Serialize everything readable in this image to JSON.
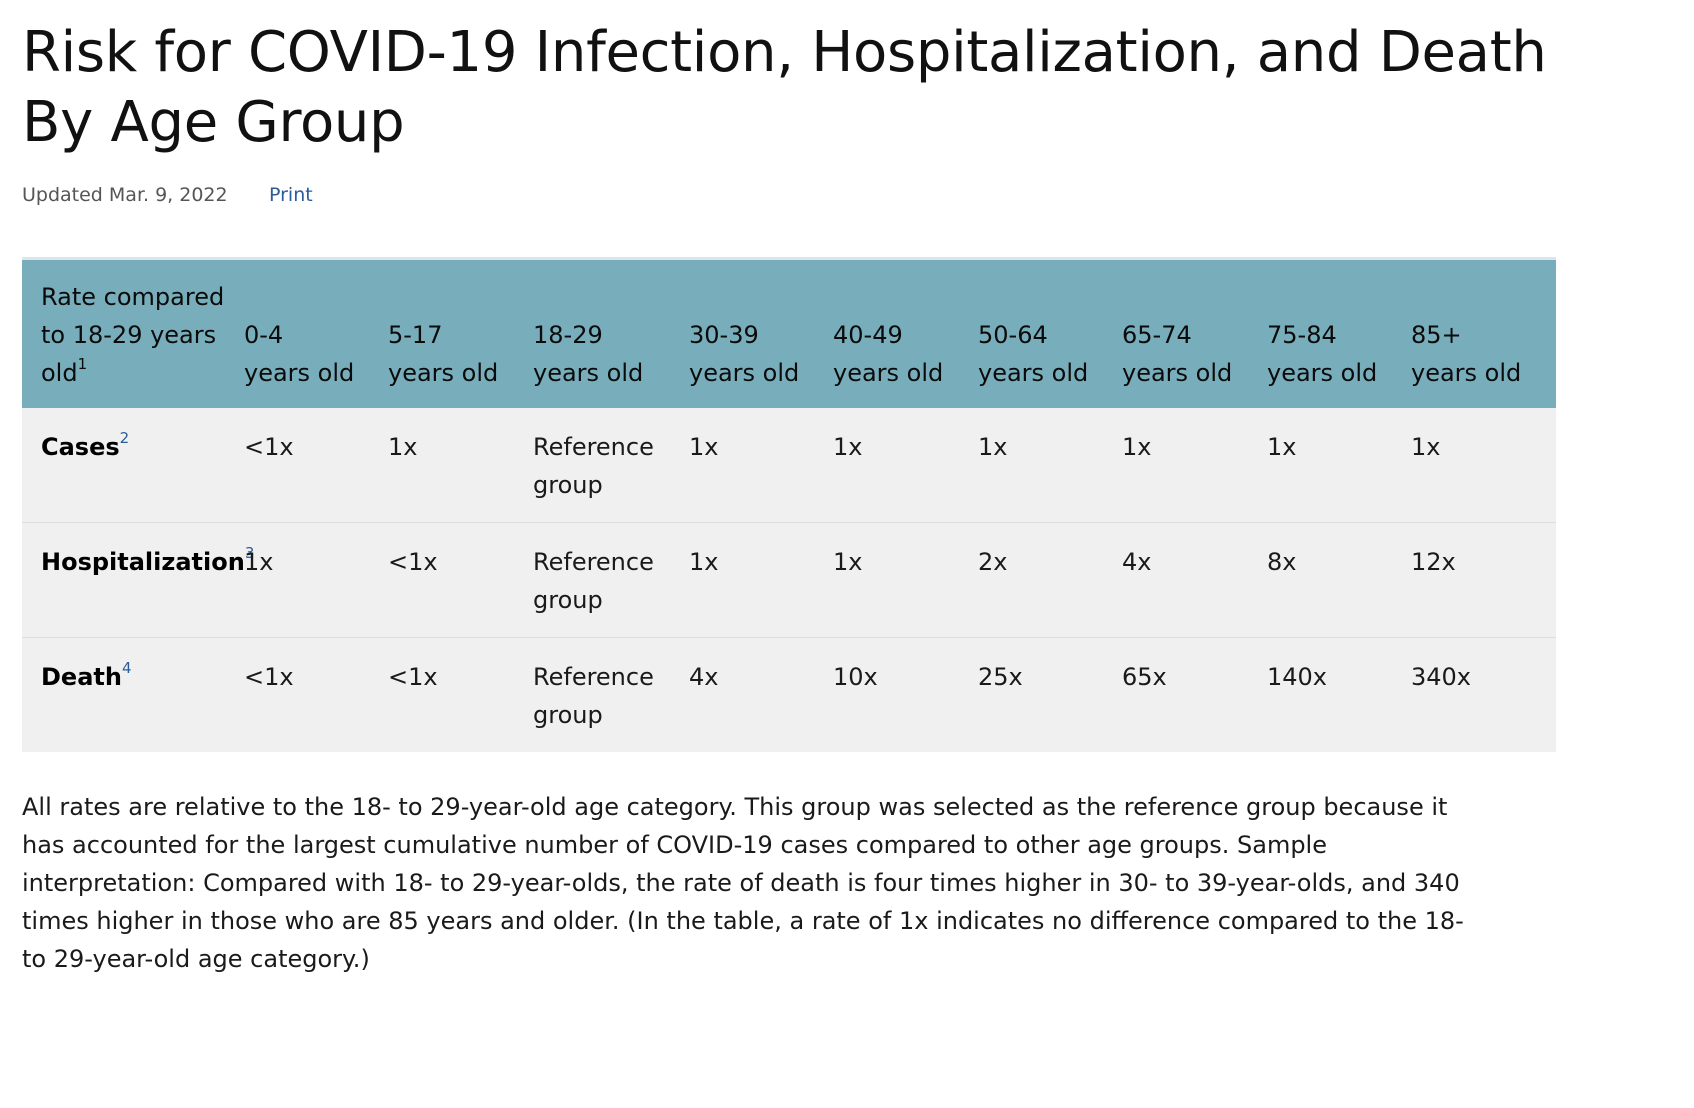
{
  "title": "Risk for COVID-19 Infection, Hospitalization, and Death By Age Group",
  "meta": {
    "updated": "Updated Mar. 9, 2022",
    "print_label": "Print"
  },
  "table": {
    "corner_header": "Rate compared to 18-29 years old",
    "corner_footnote": "1",
    "columns": [
      {
        "range": "0-4",
        "unit": "years old"
      },
      {
        "range": "5-17",
        "unit": "years old"
      },
      {
        "range": "18-29",
        "unit": "years old"
      },
      {
        "range": "30-39",
        "unit": "years old"
      },
      {
        "range": "40-49",
        "unit": "years old"
      },
      {
        "range": "50-64",
        "unit": "years old"
      },
      {
        "range": "65-74",
        "unit": "years old"
      },
      {
        "range": "75-84",
        "unit": "years old"
      },
      {
        "range": "85+",
        "unit": "years old"
      }
    ],
    "rows": [
      {
        "label": "Cases",
        "footnote": "2",
        "values": [
          "<1x",
          "1x",
          "Reference group",
          "1x",
          "1x",
          "1x",
          "1x",
          "1x",
          "1x"
        ]
      },
      {
        "label": "Hospitalization",
        "footnote": "3",
        "values": [
          "1x",
          "<1x",
          "Reference group",
          "1x",
          "1x",
          "2x",
          "4x",
          "8x",
          "12x"
        ]
      },
      {
        "label": "Death",
        "footnote": "4",
        "values": [
          "<1x",
          "<1x",
          "Reference group",
          "4x",
          "10x",
          "25x",
          "65x",
          "140x",
          "340x"
        ]
      }
    ]
  },
  "explanation": "All rates are relative to the 18- to 29-year-old age category. This group was selected as the reference group because it has accounted for the largest cumulative number of COVID-19 cases compared to other age groups. Sample interpretation: Compared with 18- to 29-year-olds, the rate of death is four times higher in 30- to 39-year-olds, and 340 times higher in those who are 85 years and older. (In the table, a rate of 1x indicates no difference compared to the 18- to 29-year-old age category.)",
  "colors": {
    "header_bg": "#78aebb",
    "row_bg": "#f0f0f0",
    "link": "#2a5c9a"
  }
}
